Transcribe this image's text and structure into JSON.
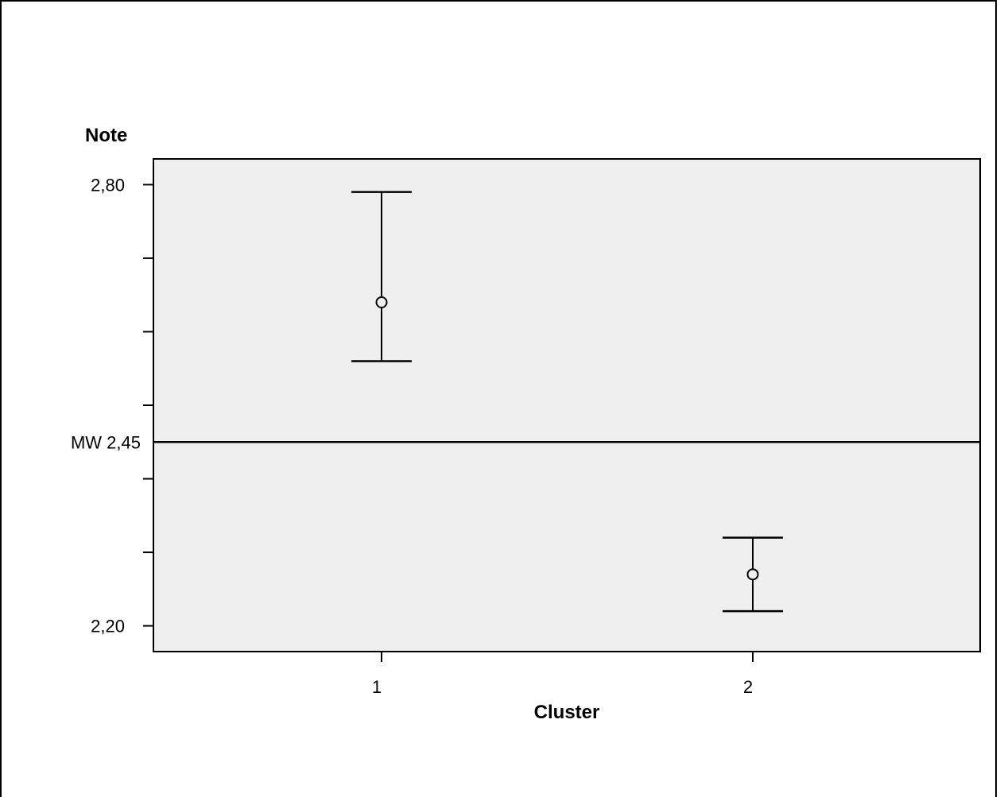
{
  "chart_data": {
    "type": "errorbar",
    "xlabel": "Cluster",
    "ylabel": "Note",
    "categories": [
      "1",
      "2"
    ],
    "series": [
      {
        "means": [
          2.64,
          2.27
        ],
        "lower": [
          2.56,
          2.22
        ],
        "upper": [
          2.79,
          2.32
        ]
      }
    ],
    "ylim": [
      2.165,
      2.835
    ],
    "yticks": [
      2.2,
      2.3,
      2.4,
      2.5,
      2.6,
      2.7,
      2.8
    ],
    "ytick_labels": {
      "2.2": "2,20",
      "2.8": "2,80"
    },
    "reference_line": {
      "value": 2.45,
      "label": "MW 2,45"
    },
    "grid": false,
    "plot_background": "#efefef",
    "line_color": "#000000"
  }
}
